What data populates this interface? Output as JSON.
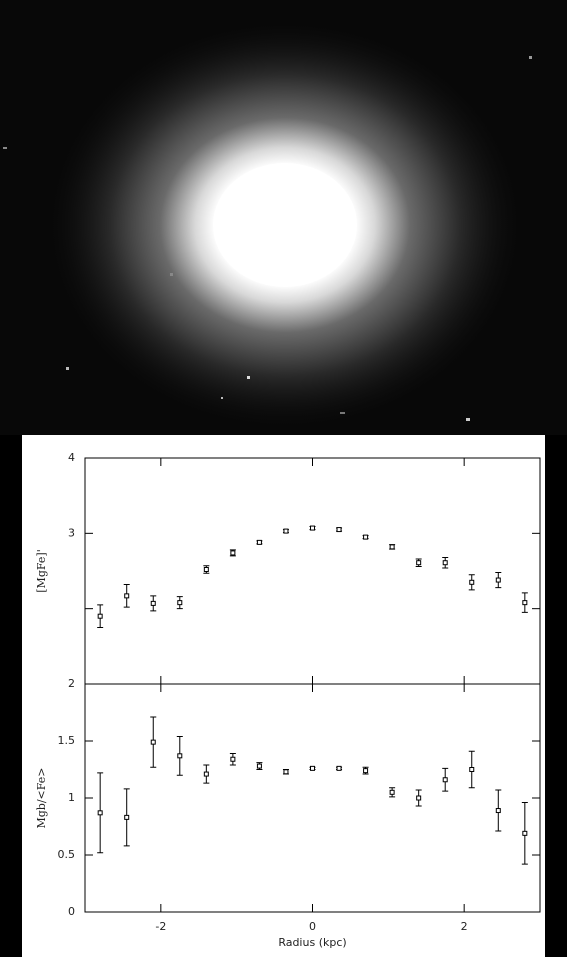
{
  "chart_data": [
    {
      "type": "scatter",
      "ylabel": "[MgFe]'",
      "x": [
        -2.8,
        -2.45,
        -2.1,
        -1.75,
        -1.4,
        -1.05,
        -0.7,
        -0.35,
        0,
        0.35,
        0.7,
        1.05,
        1.4,
        1.75,
        2.1,
        2.45,
        2.8
      ],
      "values": [
        1.9,
        2.17,
        2.07,
        2.08,
        2.52,
        2.74,
        2.88,
        3.03,
        3.07,
        3.05,
        2.95,
        2.82,
        2.61,
        2.61,
        2.35,
        2.38,
        2.08
      ],
      "errors": [
        0.15,
        0.15,
        0.1,
        0.08,
        0.05,
        0.04,
        0.02,
        0.02,
        0.02,
        0.02,
        0.02,
        0.03,
        0.05,
        0.07,
        0.1,
        0.1,
        0.13
      ],
      "xlim": [
        -3,
        3
      ],
      "ylim": [
        1,
        4
      ],
      "yticks": [
        2,
        3,
        4
      ],
      "color": "#000000"
    },
    {
      "type": "scatter",
      "ylabel": "Mgb/<Fe>",
      "xlabel": "Radius (kpc)",
      "x": [
        -2.8,
        -2.45,
        -2.1,
        -1.75,
        -1.4,
        -1.05,
        -0.7,
        -0.35,
        0,
        0.35,
        0.7,
        1.05,
        1.4,
        1.75,
        2.1,
        2.45,
        2.8
      ],
      "values": [
        0.87,
        0.83,
        1.49,
        1.37,
        1.21,
        1.34,
        1.28,
        1.23,
        1.26,
        1.26,
        1.24,
        1.05,
        1.0,
        1.16,
        1.25,
        0.89,
        0.69
      ],
      "errors": [
        0.35,
        0.25,
        0.22,
        0.17,
        0.08,
        0.05,
        0.03,
        0.02,
        0.01,
        0.01,
        0.03,
        0.04,
        0.07,
        0.1,
        0.16,
        0.18,
        0.27
      ],
      "xlim": [
        -3,
        3
      ],
      "xticks": [
        -2,
        0,
        2
      ],
      "ylim": [
        0,
        2
      ],
      "yticks": [
        0,
        0.5,
        1,
        1.5,
        2
      ],
      "color": "#000000"
    }
  ]
}
